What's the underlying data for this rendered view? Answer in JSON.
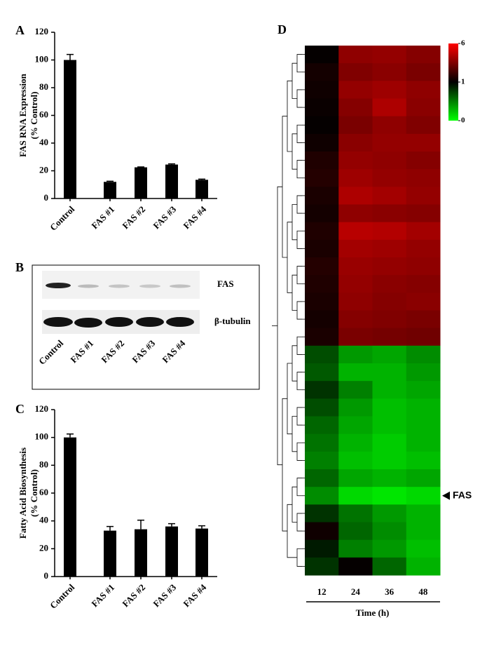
{
  "chart_data": [
    {
      "type": "bar",
      "panel_label": "A",
      "ylabel": [
        "FAS RNA Expression",
        "(% Control)"
      ],
      "categories": [
        "Control",
        "FAS #1",
        "FAS #2",
        "FAS #3",
        "FAS #4"
      ],
      "values": [
        100,
        12,
        22.5,
        24.5,
        13.5
      ],
      "errors": [
        4,
        0.5,
        0.3,
        0.5,
        0.5
      ],
      "color": "#000000",
      "ylim": [
        0,
        120
      ],
      "yticks": [
        0,
        20,
        40,
        60,
        80,
        100,
        120
      ]
    },
    {
      "type": "bar",
      "panel_label": "C",
      "ylabel": [
        "Fatty Acid Biosynthesis",
        "(% Control)"
      ],
      "categories": [
        "Control",
        "FAS #1",
        "FAS #2",
        "FAS #3",
        "FAS #4"
      ],
      "values": [
        100,
        33,
        34,
        36,
        34.5
      ],
      "errors": [
        2.5,
        3,
        6.5,
        2,
        2
      ],
      "color": "#000000",
      "ylim": [
        0,
        120
      ],
      "yticks": [
        0,
        20,
        40,
        60,
        80,
        100,
        120
      ]
    },
    {
      "type": "heatmap",
      "panel_label": "D",
      "categories": [
        "12",
        "24",
        "36",
        "48"
      ],
      "xlabel": "Time (h)",
      "zticks": [
        0,
        1,
        6
      ],
      "zcolors": [
        "#00ff00",
        "#000000",
        "#ff0000"
      ],
      "annotation": {
        "text": "FAS",
        "row": 25
      },
      "values": [
        [
          1.1,
          3.8,
          3.9,
          3.6
        ],
        [
          1.4,
          3.5,
          3.7,
          3.4
        ],
        [
          1.3,
          3.9,
          4.1,
          3.8
        ],
        [
          1.2,
          3.6,
          4.4,
          3.7
        ],
        [
          1.1,
          3.4,
          3.8,
          3.5
        ],
        [
          1.3,
          3.7,
          3.9,
          3.9
        ],
        [
          1.6,
          3.9,
          3.8,
          3.6
        ],
        [
          1.7,
          4.1,
          3.9,
          3.8
        ],
        [
          1.5,
          4.4,
          4.2,
          3.9
        ],
        [
          1.4,
          3.8,
          3.7,
          3.6
        ],
        [
          1.6,
          4.6,
          4.5,
          4.2
        ],
        [
          1.5,
          4.2,
          4.1,
          3.9
        ],
        [
          1.7,
          4.0,
          3.9,
          3.8
        ],
        [
          1.6,
          3.9,
          3.7,
          3.6
        ],
        [
          1.5,
          3.8,
          3.6,
          3.7
        ],
        [
          1.4,
          3.6,
          3.5,
          3.4
        ],
        [
          1.5,
          3.4,
          3.3,
          3.2
        ],
        [
          0.7,
          0.4,
          0.35,
          0.45
        ],
        [
          0.65,
          0.3,
          0.3,
          0.4
        ],
        [
          0.8,
          0.5,
          0.3,
          0.35
        ],
        [
          0.7,
          0.4,
          0.25,
          0.3
        ],
        [
          0.6,
          0.35,
          0.25,
          0.3
        ],
        [
          0.55,
          0.3,
          0.2,
          0.3
        ],
        [
          0.5,
          0.25,
          0.2,
          0.25
        ],
        [
          0.6,
          0.35,
          0.3,
          0.35
        ],
        [
          0.45,
          0.15,
          0.1,
          0.15
        ],
        [
          0.8,
          0.55,
          0.4,
          0.3
        ],
        [
          1.3,
          0.6,
          0.45,
          0.3
        ],
        [
          0.9,
          0.5,
          0.4,
          0.25
        ],
        [
          0.8,
          1.1,
          0.6,
          0.3
        ]
      ]
    }
  ],
  "blot": {
    "panel_label": "B",
    "rows": [
      "FAS",
      "β-tubulin"
    ],
    "lanes": [
      "Control",
      "FAS #1",
      "FAS #2",
      "FAS #3",
      "FAS #4"
    ]
  }
}
